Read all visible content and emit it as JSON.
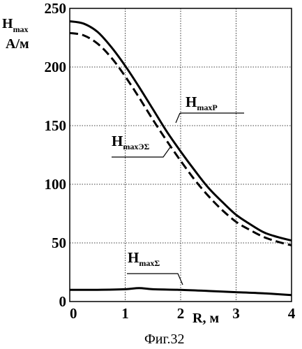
{
  "chart_data": {
    "type": "line",
    "caption": "Фиг.32",
    "ylabel_main": "H",
    "ylabel_sub": "max",
    "ylabel_unit": "А/м",
    "xlabel": "R, м",
    "xlim": [
      0,
      4
    ],
    "ylim": [
      0,
      250
    ],
    "x_ticks": [
      "0",
      "1",
      "2",
      "3",
      "4"
    ],
    "y_ticks": [
      "0",
      "50",
      "100",
      "150",
      "200",
      "250"
    ],
    "grid": "dotted",
    "series": [
      {
        "name_main": "H",
        "name_sub": "maxP",
        "style": "solid",
        "x": [
          0,
          0.25,
          0.5,
          0.75,
          1.0,
          1.25,
          1.5,
          1.75,
          2.0,
          2.25,
          2.5,
          2.75,
          3.0,
          3.25,
          3.5,
          3.75,
          4.0
        ],
        "y": [
          239,
          237,
          230,
          217,
          201,
          183,
          164,
          145,
          128,
          112,
          97,
          85,
          74,
          66,
          59,
          55,
          52
        ]
      },
      {
        "name_main": "H",
        "name_sub": "maxЭΣ",
        "style": "dashed",
        "x": [
          0,
          0.25,
          0.5,
          0.75,
          1.0,
          1.25,
          1.5,
          1.75,
          2.0,
          2.25,
          2.5,
          2.75,
          3.0,
          3.25,
          3.5,
          3.75,
          4.0
        ],
        "y": [
          229,
          227,
          220,
          208,
          192,
          174,
          155,
          137,
          120,
          104,
          90,
          78,
          68,
          61,
          55,
          51,
          48
        ]
      },
      {
        "name_main": "H",
        "name_sub": "maxΣ",
        "style": "solid",
        "x": [
          0,
          0.5,
          1.0,
          1.25,
          1.5,
          2.0,
          2.5,
          3.0,
          3.5,
          4.0
        ],
        "y": [
          10,
          10,
          10.5,
          11.5,
          10.5,
          10,
          9,
          8,
          7,
          5.5
        ]
      }
    ]
  }
}
